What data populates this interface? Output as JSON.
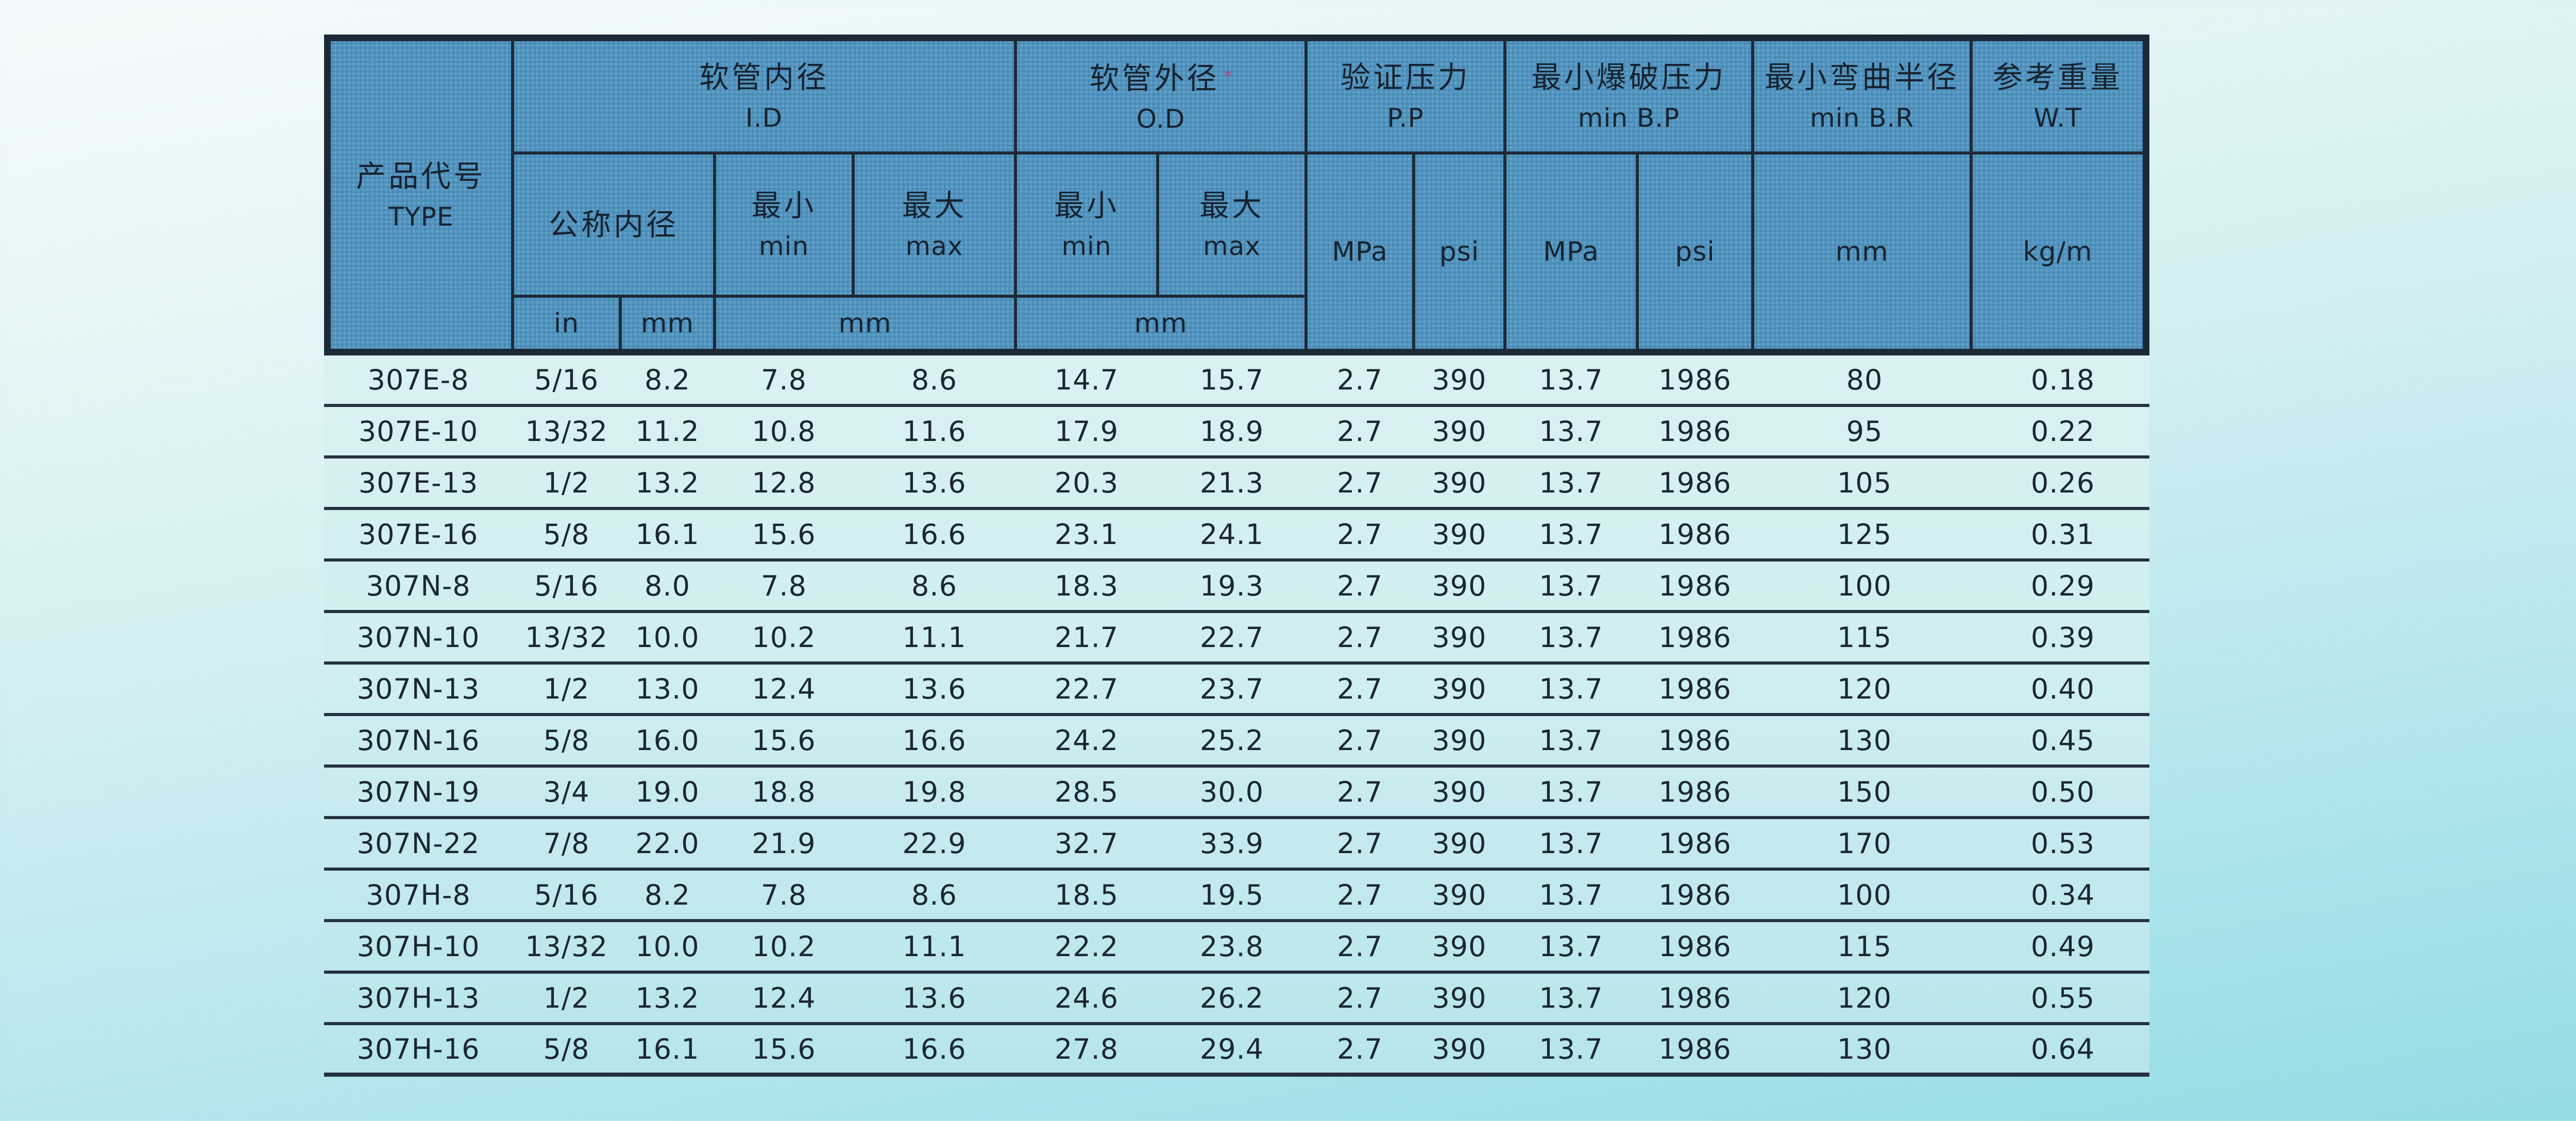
{
  "colors": {
    "header_fill": "#4f93bf",
    "grid_line": "#1c2a38",
    "text": "#17232f",
    "page_background_top": "#f4fbfb",
    "page_background_bottom": "#95dbe5",
    "data_area_background": "#cfeef0",
    "print_artifact_pink": "#b5407e"
  },
  "table": {
    "header": {
      "product_code": {
        "zh": "产品代号",
        "en": "TYPE"
      },
      "id_group": {
        "zh": "软管内径",
        "en": "I.D"
      },
      "od_group": {
        "zh": "软管外径",
        "en": "O.D",
        "mark": "*"
      },
      "pp_group": {
        "zh": "验证压力",
        "en": "P.P"
      },
      "bp_group": {
        "zh": "最小爆破压力",
        "en": "min B.P"
      },
      "br_group": {
        "zh": "最小弯曲半径",
        "en": "min B.R"
      },
      "wt_group": {
        "zh": "参考重量",
        "en": "W.T"
      },
      "nominal_id": {
        "zh": "公称内径"
      },
      "min_label": {
        "zh": "最小",
        "en": "min"
      },
      "max_label": {
        "zh": "最大",
        "en": "max"
      },
      "unit_in": "in",
      "unit_mm": "mm",
      "unit_mpa": "MPa",
      "unit_psi": "psi",
      "unit_kg_m": "kg/m"
    },
    "rows": [
      {
        "type": "307E-8",
        "nominal_in": "5/16",
        "nominal_mm": "8.2",
        "id_min": "7.8",
        "id_max": "8.6",
        "od_min": "14.7",
        "od_max": "15.7",
        "pp_mpa": "2.7",
        "pp_psi": "390",
        "bp_mpa": "13.7",
        "bp_psi": "1986",
        "br_mm": "80",
        "wt_kg_m": "0.18"
      },
      {
        "type": "307E-10",
        "nominal_in": "13/32",
        "nominal_mm": "11.2",
        "id_min": "10.8",
        "id_max": "11.6",
        "od_min": "17.9",
        "od_max": "18.9",
        "pp_mpa": "2.7",
        "pp_psi": "390",
        "bp_mpa": "13.7",
        "bp_psi": "1986",
        "br_mm": "95",
        "wt_kg_m": "0.22"
      },
      {
        "type": "307E-13",
        "nominal_in": "1/2",
        "nominal_mm": "13.2",
        "id_min": "12.8",
        "id_max": "13.6",
        "od_min": "20.3",
        "od_max": "21.3",
        "pp_mpa": "2.7",
        "pp_psi": "390",
        "bp_mpa": "13.7",
        "bp_psi": "1986",
        "br_mm": "105",
        "wt_kg_m": "0.26"
      },
      {
        "type": "307E-16",
        "nominal_in": "5/8",
        "nominal_mm": "16.1",
        "id_min": "15.6",
        "id_max": "16.6",
        "od_min": "23.1",
        "od_max": "24.1",
        "pp_mpa": "2.7",
        "pp_psi": "390",
        "bp_mpa": "13.7",
        "bp_psi": "1986",
        "br_mm": "125",
        "wt_kg_m": "0.31"
      },
      {
        "type": "307N-8",
        "nominal_in": "5/16",
        "nominal_mm": "8.0",
        "id_min": "7.8",
        "id_max": "8.6",
        "od_min": "18.3",
        "od_max": "19.3",
        "pp_mpa": "2.7",
        "pp_psi": "390",
        "bp_mpa": "13.7",
        "bp_psi": "1986",
        "br_mm": "100",
        "wt_kg_m": "0.29"
      },
      {
        "type": "307N-10",
        "nominal_in": "13/32",
        "nominal_mm": "10.0",
        "id_min": "10.2",
        "id_max": "11.1",
        "od_min": "21.7",
        "od_max": "22.7",
        "pp_mpa": "2.7",
        "pp_psi": "390",
        "bp_mpa": "13.7",
        "bp_psi": "1986",
        "br_mm": "115",
        "wt_kg_m": "0.39"
      },
      {
        "type": "307N-13",
        "nominal_in": "1/2",
        "nominal_mm": "13.0",
        "id_min": "12.4",
        "id_max": "13.6",
        "od_min": "22.7",
        "od_max": "23.7",
        "pp_mpa": "2.7",
        "pp_psi": "390",
        "bp_mpa": "13.7",
        "bp_psi": "1986",
        "br_mm": "120",
        "wt_kg_m": "0.40"
      },
      {
        "type": "307N-16",
        "nominal_in": "5/8",
        "nominal_mm": "16.0",
        "id_min": "15.6",
        "id_max": "16.6",
        "od_min": "24.2",
        "od_max": "25.2",
        "pp_mpa": "2.7",
        "pp_psi": "390",
        "bp_mpa": "13.7",
        "bp_psi": "1986",
        "br_mm": "130",
        "wt_kg_m": "0.45"
      },
      {
        "type": "307N-19",
        "nominal_in": "3/4",
        "nominal_mm": "19.0",
        "id_min": "18.8",
        "id_max": "19.8",
        "od_min": "28.5",
        "od_max": "30.0",
        "pp_mpa": "2.7",
        "pp_psi": "390",
        "bp_mpa": "13.7",
        "bp_psi": "1986",
        "br_mm": "150",
        "wt_kg_m": "0.50"
      },
      {
        "type": "307N-22",
        "nominal_in": "7/8",
        "nominal_mm": "22.0",
        "id_min": "21.9",
        "id_max": "22.9",
        "od_min": "32.7",
        "od_max": "33.9",
        "pp_mpa": "2.7",
        "pp_psi": "390",
        "bp_mpa": "13.7",
        "bp_psi": "1986",
        "br_mm": "170",
        "wt_kg_m": "0.53"
      },
      {
        "type": "307H-8",
        "nominal_in": "5/16",
        "nominal_mm": "8.2",
        "id_min": "7.8",
        "id_max": "8.6",
        "od_min": "18.5",
        "od_max": "19.5",
        "pp_mpa": "2.7",
        "pp_psi": "390",
        "bp_mpa": "13.7",
        "bp_psi": "1986",
        "br_mm": "100",
        "wt_kg_m": "0.34"
      },
      {
        "type": "307H-10",
        "nominal_in": "13/32",
        "nominal_mm": "10.0",
        "id_min": "10.2",
        "id_max": "11.1",
        "od_min": "22.2",
        "od_max": "23.8",
        "pp_mpa": "2.7",
        "pp_psi": "390",
        "bp_mpa": "13.7",
        "bp_psi": "1986",
        "br_mm": "115",
        "wt_kg_m": "0.49"
      },
      {
        "type": "307H-13",
        "nominal_in": "1/2",
        "nominal_mm": "13.2",
        "id_min": "12.4",
        "id_max": "13.6",
        "od_min": "24.6",
        "od_max": "26.2",
        "pp_mpa": "2.7",
        "pp_psi": "390",
        "bp_mpa": "13.7",
        "bp_psi": "1986",
        "br_mm": "120",
        "wt_kg_m": "0.55"
      },
      {
        "type": "307H-16",
        "nominal_in": "5/8",
        "nominal_mm": "16.1",
        "id_min": "15.6",
        "id_max": "16.6",
        "od_min": "27.8",
        "od_max": "29.4",
        "pp_mpa": "2.7",
        "pp_psi": "390",
        "bp_mpa": "13.7",
        "bp_psi": "1986",
        "br_mm": "130",
        "wt_kg_m": "0.64"
      }
    ]
  }
}
